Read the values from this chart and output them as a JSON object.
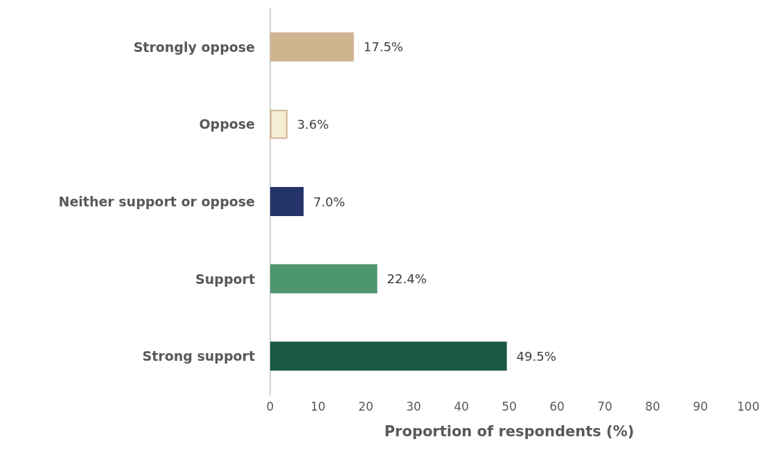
{
  "chart_data": {
    "type": "bar",
    "orientation": "horizontal",
    "categories": [
      "Strongly oppose",
      "Oppose",
      "Neither support or oppose",
      "Support",
      "Strong support"
    ],
    "values": [
      17.5,
      3.6,
      7.0,
      22.4,
      49.5
    ],
    "colors": [
      "#d0b38f",
      "#f5eed5",
      "#253468",
      "#4e9670",
      "#1a5a44"
    ],
    "value_labels": [
      "17.5%",
      "3.6%",
      "7.0%",
      "22.4%",
      "49.5%"
    ],
    "xlabel": "Proportion of respondents (%)",
    "xlim": [
      0,
      100
    ],
    "xticks": [
      0,
      10,
      20,
      30,
      40,
      50,
      60,
      70,
      80,
      90,
      100
    ],
    "grid": false
  }
}
